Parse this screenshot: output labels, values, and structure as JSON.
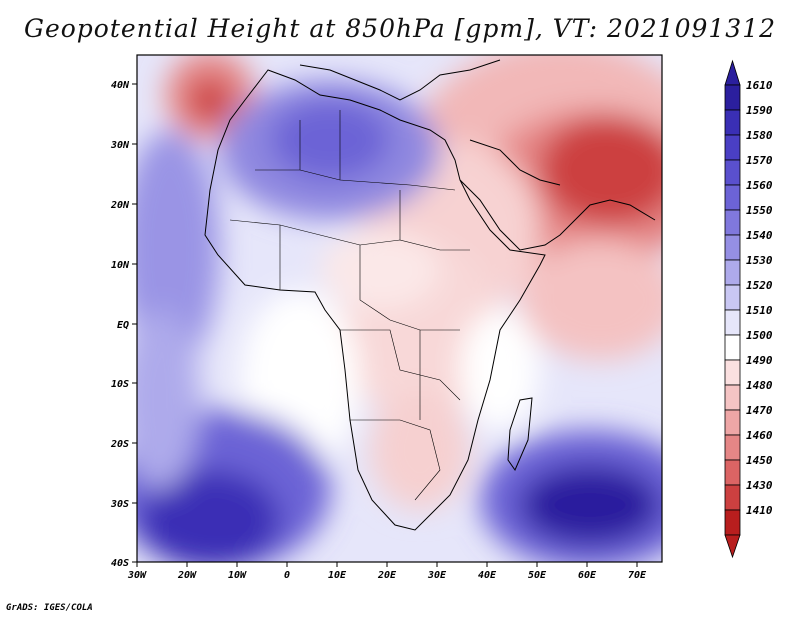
{
  "title": "Geopotential Height at 850hPa [gpm], VT: 2021091312",
  "credit": "GrADS: IGES/COLA",
  "map": {
    "lat_labels": [
      "40N",
      "30N",
      "20N",
      "10N",
      "EQ",
      "10S",
      "20S",
      "30S",
      "40S"
    ],
    "lon_labels": [
      "30W",
      "20W",
      "10W",
      "0",
      "10E",
      "20E",
      "30E",
      "40E",
      "50E",
      "60E",
      "70E"
    ]
  },
  "colorbar": {
    "levels": [
      "1610",
      "1590",
      "1580",
      "1570",
      "1560",
      "1550",
      "1540",
      "1530",
      "1520",
      "1510",
      "1500",
      "1490",
      "1480",
      "1470",
      "1460",
      "1450",
      "1430",
      "1410"
    ],
    "colors": [
      "#2b1f9e",
      "#3a2fb5",
      "#4a3fc4",
      "#5a50ce",
      "#6c63d6",
      "#8078dd",
      "#958fe4",
      "#aeaaeb",
      "#c9c7f3",
      "#e6e6fa",
      "#ffffff",
      "#fbe0e0",
      "#f5c4c4",
      "#eea6a6",
      "#e58686",
      "#db6464",
      "#cc4040",
      "#b81e1e"
    ]
  }
}
